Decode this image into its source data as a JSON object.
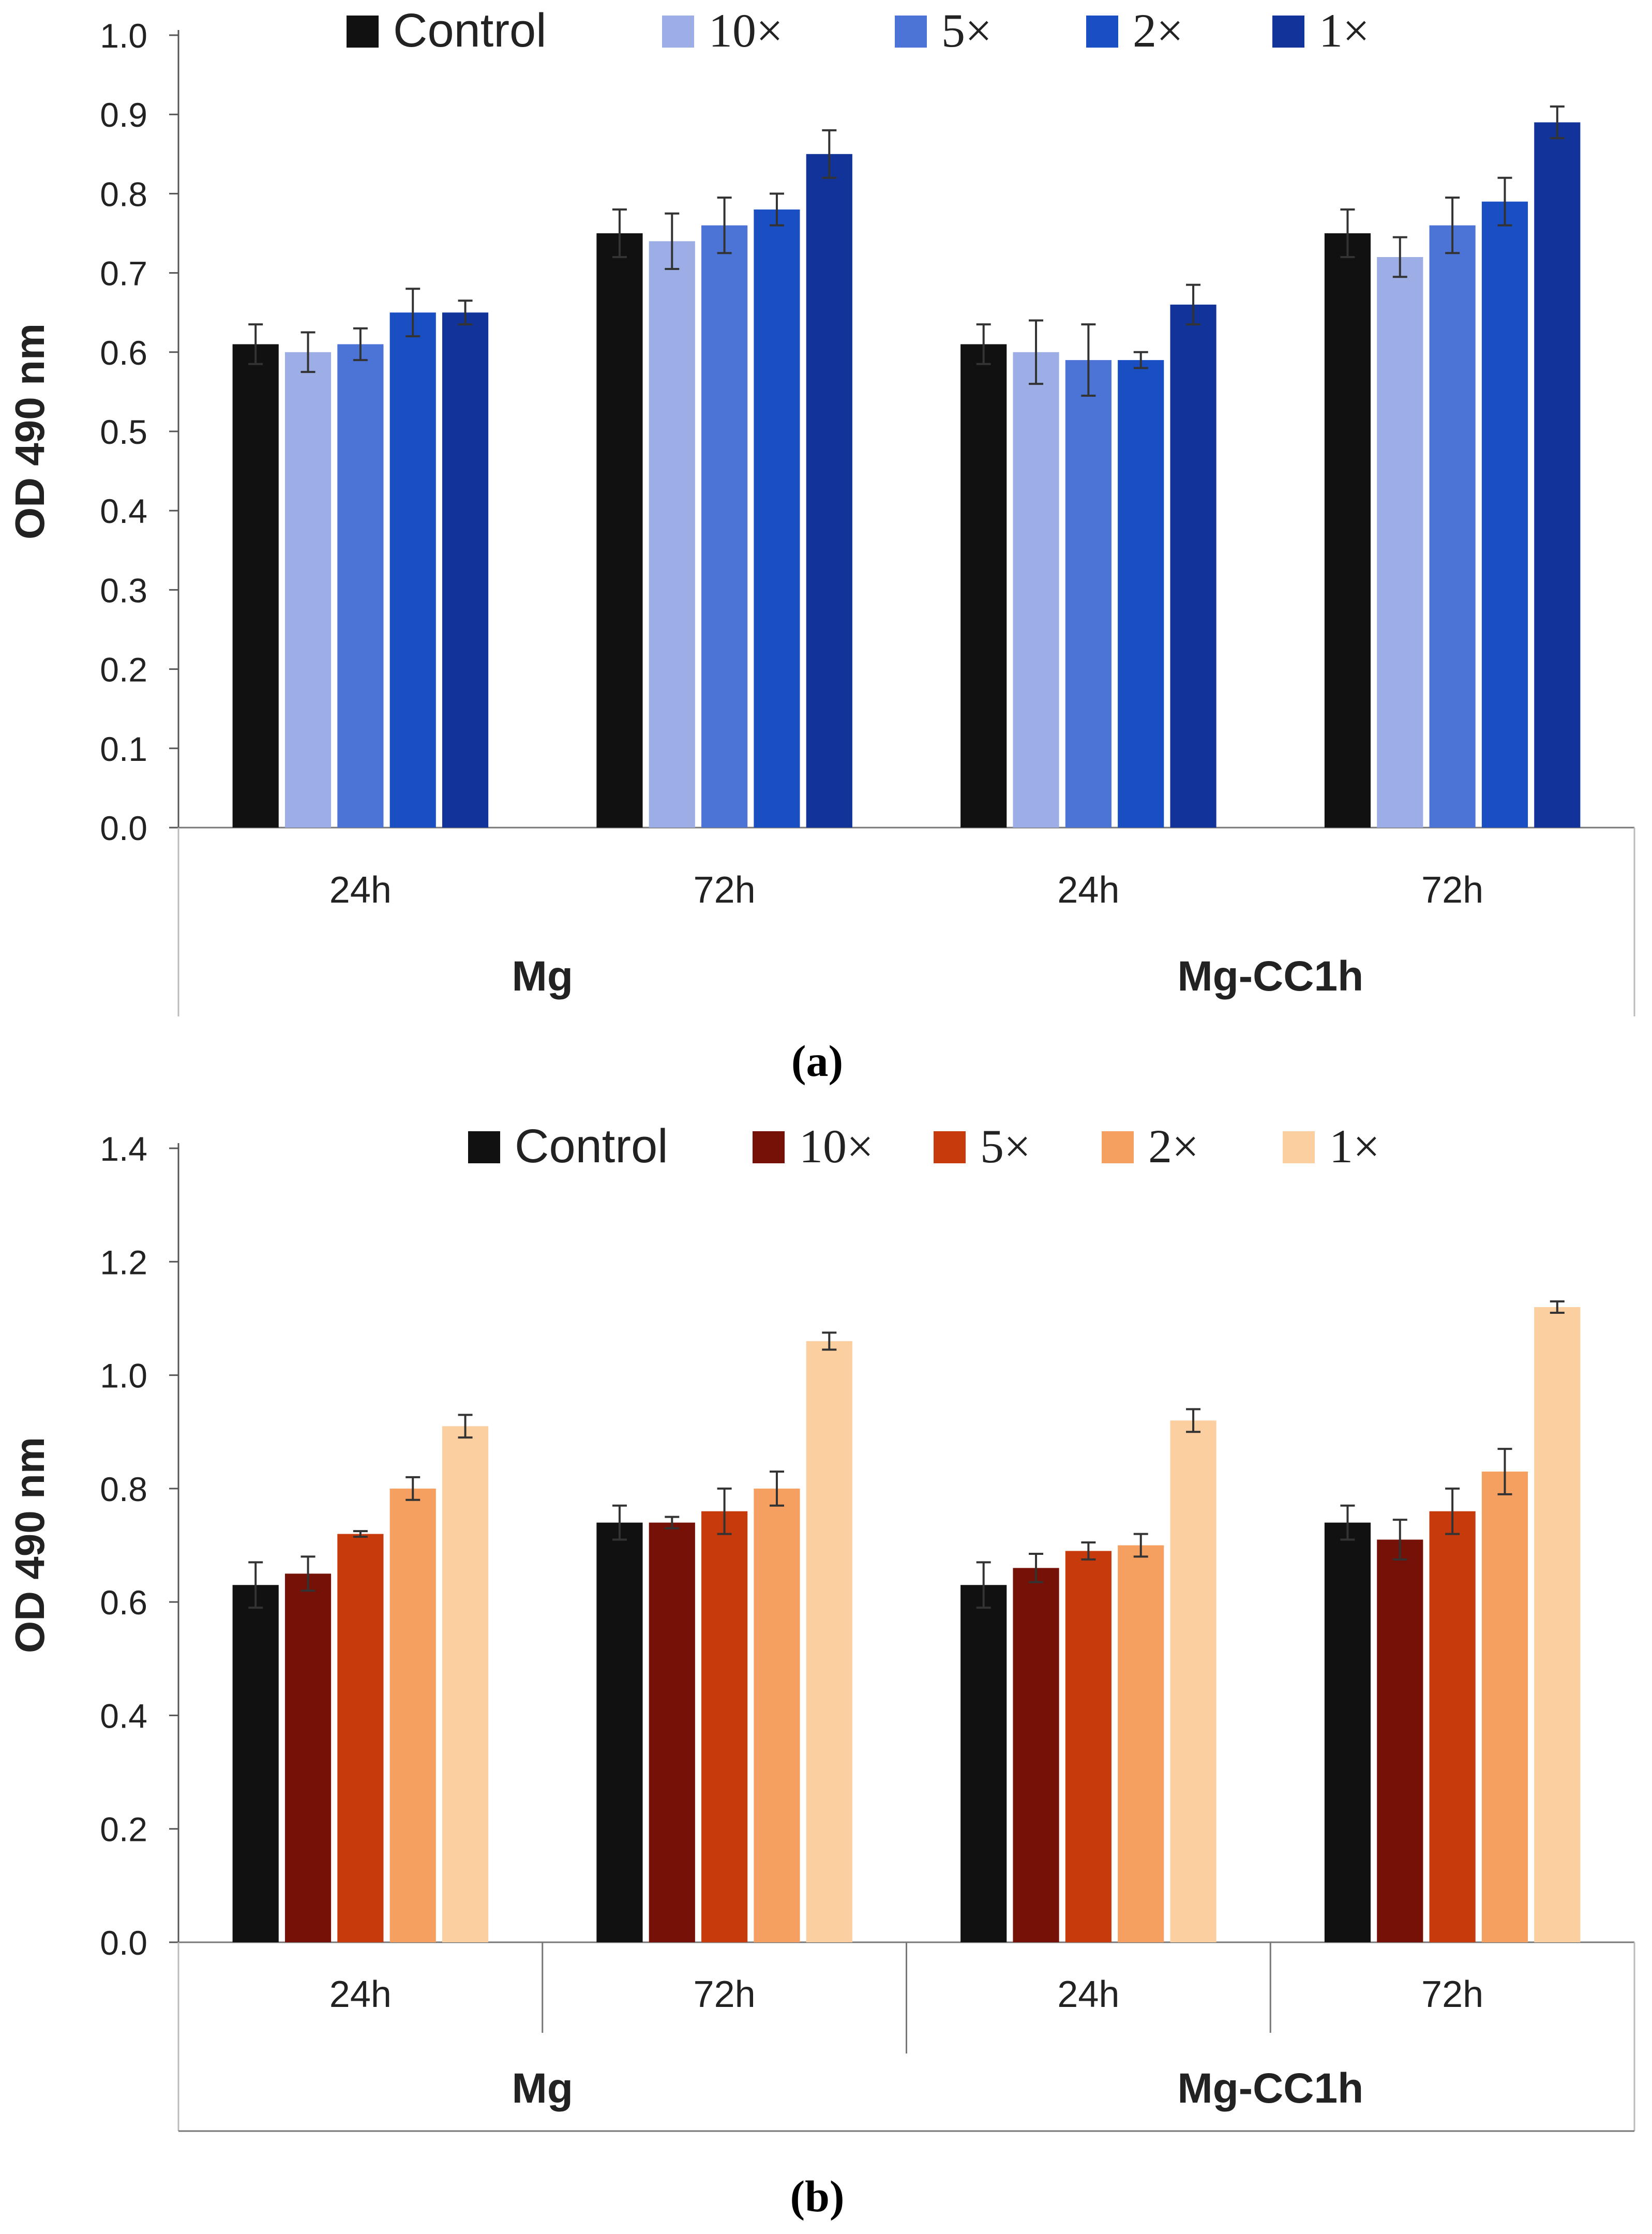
{
  "figure": {
    "panel_labels": [
      "(a)",
      "(b)"
    ]
  },
  "chart_data": [
    {
      "type": "bar",
      "panel_label": "(a)",
      "ylabel": "OD 490 nm",
      "xlabel": "",
      "ylim": [
        0,
        1.0
      ],
      "yticks": [
        "0.0",
        "0.1",
        "0.2",
        "0.3",
        "0.4",
        "0.5",
        "0.6",
        "0.7",
        "0.8",
        "0.9",
        "1.0"
      ],
      "categories": [
        "24h",
        "72h",
        "24h",
        "72h"
      ],
      "groups": [
        "Mg",
        "Mg-CC1h"
      ],
      "legend_position": "top",
      "series": [
        {
          "name": "Control",
          "color": "#111111",
          "values": [
            0.61,
            0.75,
            0.61,
            0.75
          ],
          "errors": [
            0.025,
            0.03,
            0.025,
            0.03
          ]
        },
        {
          "name": "10×",
          "color": "#9daee6",
          "values": [
            0.6,
            0.74,
            0.6,
            0.72
          ],
          "errors": [
            0.025,
            0.035,
            0.04,
            0.025
          ]
        },
        {
          "name": "5×",
          "color": "#4c74d6",
          "values": [
            0.61,
            0.76,
            0.59,
            0.76
          ],
          "errors": [
            0.02,
            0.035,
            0.045,
            0.035
          ]
        },
        {
          "name": "2×",
          "color": "#1a4fc4",
          "values": [
            0.65,
            0.78,
            0.59,
            0.79
          ],
          "errors": [
            0.03,
            0.02,
            0.01,
            0.03
          ]
        },
        {
          "name": "1×",
          "color": "#12349a",
          "values": [
            0.65,
            0.85,
            0.66,
            0.89
          ],
          "errors": [
            0.015,
            0.03,
            0.025,
            0.02
          ]
        }
      ]
    },
    {
      "type": "bar",
      "panel_label": "(b)",
      "ylabel": "OD 490 nm",
      "xlabel": "",
      "ylim": [
        0,
        1.4
      ],
      "yticks": [
        "0.0",
        "0.2",
        "0.4",
        "0.6",
        "0.8",
        "1.0",
        "1.2",
        "1.4"
      ],
      "categories": [
        "24h",
        "72h",
        "24h",
        "72h"
      ],
      "groups": [
        "Mg",
        "Mg-CC1h"
      ],
      "legend_position": "top",
      "series": [
        {
          "name": "Control",
          "color": "#111111",
          "values": [
            0.63,
            0.74,
            0.63,
            0.74
          ],
          "errors": [
            0.04,
            0.03,
            0.04,
            0.03
          ]
        },
        {
          "name": "10×",
          "color": "#761108",
          "values": [
            0.65,
            0.74,
            0.66,
            0.71
          ],
          "errors": [
            0.03,
            0.01,
            0.025,
            0.035
          ]
        },
        {
          "name": "5×",
          "color": "#c73a0c",
          "values": [
            0.72,
            0.76,
            0.69,
            0.76
          ],
          "errors": [
            0.005,
            0.04,
            0.015,
            0.04
          ]
        },
        {
          "name": "2×",
          "color": "#f5a060",
          "values": [
            0.8,
            0.8,
            0.7,
            0.83
          ],
          "errors": [
            0.02,
            0.03,
            0.02,
            0.04
          ]
        },
        {
          "name": "1×",
          "color": "#fbcfa0",
          "values": [
            0.91,
            1.06,
            0.92,
            1.12
          ],
          "errors": [
            0.02,
            0.015,
            0.02,
            0.01
          ]
        }
      ]
    }
  ]
}
